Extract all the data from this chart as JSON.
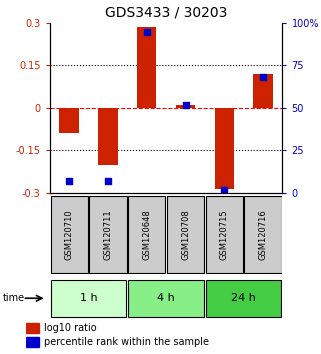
{
  "title": "GDS3433 / 30203",
  "samples": [
    "GSM120710",
    "GSM120711",
    "GSM120648",
    "GSM120708",
    "GSM120715",
    "GSM120716"
  ],
  "log10_ratio": [
    -0.09,
    -0.2,
    0.285,
    0.01,
    -0.285,
    0.12
  ],
  "percentile_rank": [
    7,
    7,
    95,
    52,
    2,
    68
  ],
  "ylim_left": [
    -0.3,
    0.3
  ],
  "ylim_right": [
    0,
    100
  ],
  "yticks_left": [
    -0.3,
    -0.15,
    0,
    0.15,
    0.3
  ],
  "ytick_labels_left": [
    "-0.3",
    "-0.15",
    "0",
    "0.15",
    "0.3"
  ],
  "yticks_right": [
    0,
    25,
    50,
    75,
    100
  ],
  "ytick_labels_right": [
    "0",
    "25",
    "50",
    "75",
    "100%"
  ],
  "hlines": [
    -0.15,
    0,
    0.15
  ],
  "hline_styles": [
    "dotted",
    "dashed",
    "dotted"
  ],
  "hline_colors": [
    "black",
    "red",
    "black"
  ],
  "bar_color": "#cc2200",
  "square_color": "#0000cc",
  "groups": [
    {
      "label": "1 h",
      "start": 0,
      "end": 2,
      "color": "#ccffcc"
    },
    {
      "label": "4 h",
      "start": 2,
      "end": 4,
      "color": "#88ee88"
    },
    {
      "label": "24 h",
      "start": 4,
      "end": 6,
      "color": "#44cc44"
    }
  ],
  "time_label": "time",
  "legend_items": [
    {
      "label": "log10 ratio",
      "color": "#cc2200"
    },
    {
      "label": "percentile rank within the sample",
      "color": "#0000cc"
    }
  ],
  "bar_width": 0.5,
  "square_size": 18,
  "fig_width": 3.21,
  "fig_height": 3.54,
  "dpi": 100,
  "title_fontsize": 10,
  "tick_fontsize": 7,
  "sample_fontsize": 6,
  "group_fontsize": 8,
  "legend_fontsize": 7
}
